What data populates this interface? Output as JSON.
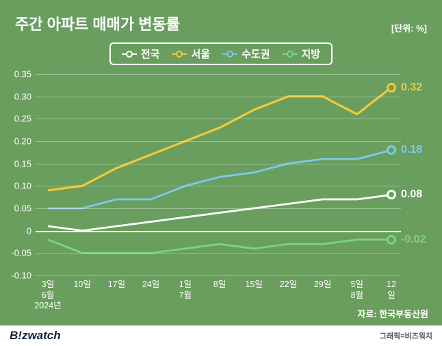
{
  "title": "주간 아파트 매매가 변동률",
  "unit": "[단위: %]",
  "legend": [
    {
      "label": "전국",
      "color": "#ffffff"
    },
    {
      "label": "서울",
      "color": "#f2c938"
    },
    {
      "label": "수도권",
      "color": "#7ec9e8"
    },
    {
      "label": "지방",
      "color": "#7bd28b"
    }
  ],
  "chart": {
    "type": "line",
    "ylim": [
      -0.1,
      0.35
    ],
    "ytick_step": 0.05,
    "yticks": [
      -0.1,
      -0.05,
      0,
      0.05,
      0.1,
      0.15,
      0.2,
      0.25,
      0.3,
      0.35
    ],
    "ytick_labels": [
      "-0.10",
      "-0.05",
      "0",
      "0.05",
      "0.10",
      "0.15",
      "0.20",
      "0.25",
      "0.30",
      "0.35"
    ],
    "x_categories": [
      "3일",
      "10일",
      "17일",
      "24일",
      "1일",
      "8일",
      "15일",
      "22일",
      "29일",
      "5일",
      "12일"
    ],
    "x_sub": {
      "0": [
        "6월",
        "2024년"
      ],
      "4": [
        "7월"
      ],
      "9": [
        "8월"
      ]
    },
    "series": {
      "national": {
        "color": "#ffffff",
        "width": 2.8,
        "values": [
          0.01,
          0.0,
          0.01,
          0.02,
          0.03,
          0.04,
          0.05,
          0.06,
          0.07,
          0.07,
          0.08
        ],
        "end_label": "0.08"
      },
      "seoul": {
        "color": "#f2c938",
        "width": 3.2,
        "values": [
          0.09,
          0.1,
          0.14,
          0.17,
          0.2,
          0.23,
          0.27,
          0.3,
          0.3,
          0.26,
          0.32
        ],
        "end_label": "0.32"
      },
      "metro": {
        "color": "#7ec9e8",
        "width": 2.8,
        "values": [
          0.05,
          0.05,
          0.07,
          0.07,
          0.1,
          0.12,
          0.13,
          0.15,
          0.16,
          0.16,
          0.18
        ],
        "end_label": "0.18"
      },
      "local": {
        "color": "#7bd28b",
        "width": 2.8,
        "values": [
          -0.02,
          -0.05,
          -0.05,
          -0.05,
          -0.04,
          -0.03,
          -0.04,
          -0.03,
          -0.03,
          -0.02,
          -0.02
        ],
        "end_label": "-0.02"
      }
    },
    "background_color": "#6a9e5e",
    "grid_color": "rgba(255,255,255,0.35)"
  },
  "source": "자료: 한국부동산원",
  "brand": "B!zwatch",
  "credit": "그래픽=비즈워치"
}
